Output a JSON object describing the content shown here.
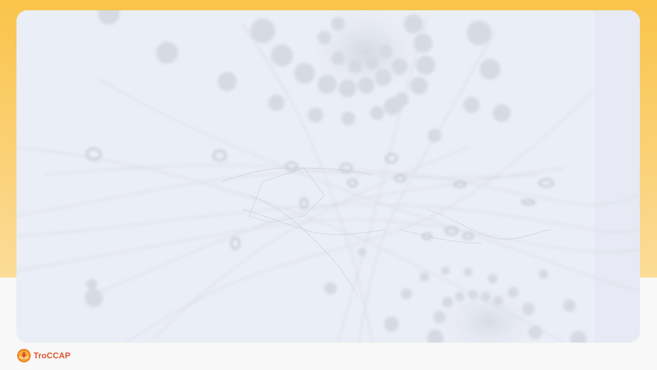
{
  "brand": {
    "name": "TroCCAP",
    "logo_icon": "troccap-logo-icon",
    "text_color": "#e0522b"
  },
  "colors": {
    "top_band": "#fac44a",
    "card_background": "#eaeef6",
    "page_background": "#f8f8f8"
  },
  "slide": {
    "background_image": "abstract-neuron-network-image"
  }
}
